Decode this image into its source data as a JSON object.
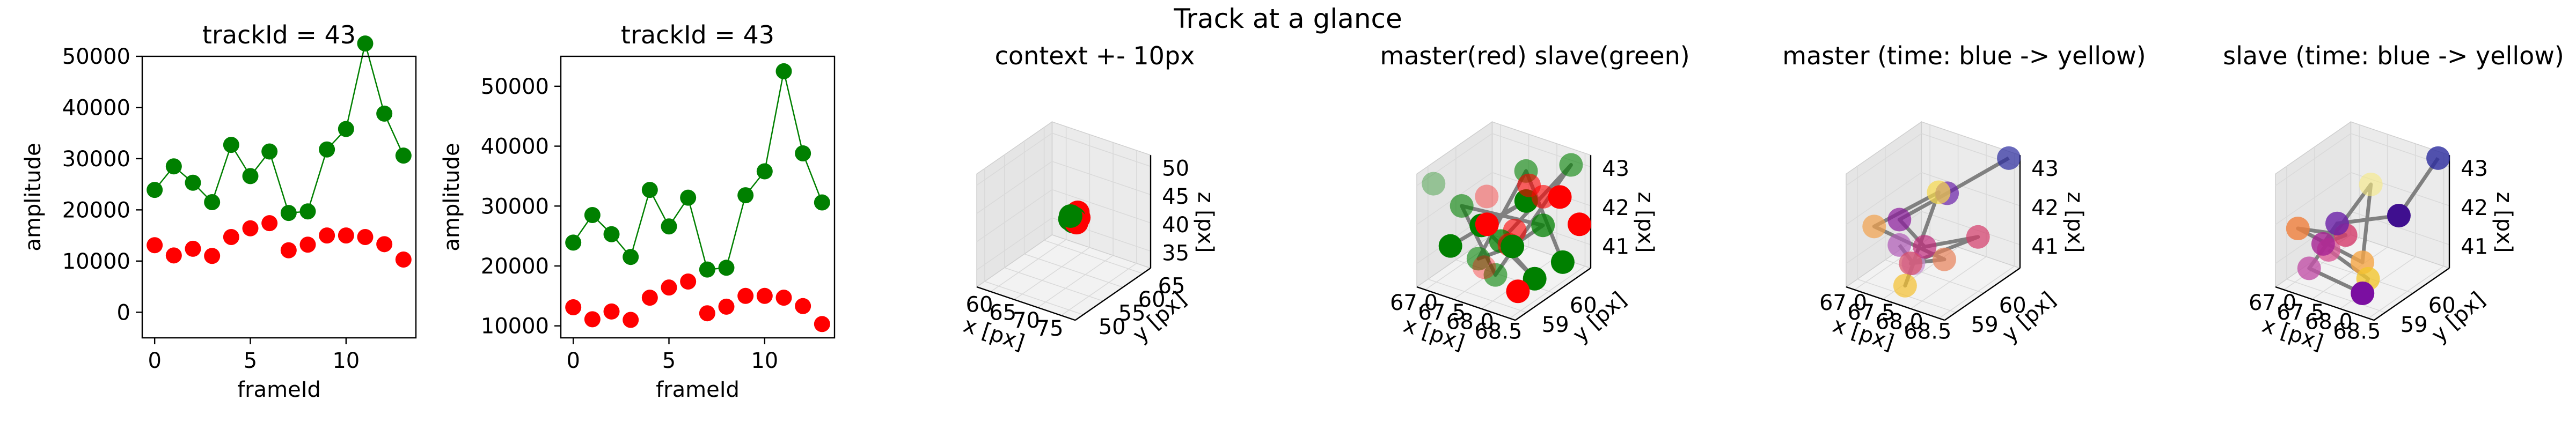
{
  "figure": {
    "title": "Track at a glance"
  },
  "chart_data": [
    {
      "type": "line",
      "title": "trackId = 43",
      "xlabel": "frameId",
      "ylabel": "amplitude",
      "xlim": [
        -0.65,
        13.65
      ],
      "ylim": [
        -5000,
        50000
      ],
      "xticks": [
        "0",
        "5",
        "10"
      ],
      "xtick_values": [
        0,
        5,
        10
      ],
      "yticks": [
        "0",
        "10000",
        "20000",
        "30000",
        "40000",
        "50000"
      ],
      "ytick_values": [
        0,
        10000,
        20000,
        30000,
        40000,
        50000
      ],
      "x": [
        0,
        1,
        2,
        3,
        4,
        5,
        6,
        7,
        8,
        9,
        10,
        11,
        12,
        13
      ],
      "series": [
        {
          "color": "#008000",
          "line": true,
          "values": [
            23900,
            28500,
            25300,
            21500,
            32700,
            26600,
            31400,
            19400,
            19700,
            31800,
            35800,
            52500,
            38800,
            30600
          ]
        },
        {
          "color": "#ff0000",
          "line": false,
          "values": [
            13100,
            11100,
            12400,
            11000,
            14700,
            16400,
            17400,
            12100,
            13200,
            15000,
            15000,
            14700,
            13300,
            10300
          ]
        }
      ]
    },
    {
      "type": "line",
      "title": "trackId = 43",
      "xlabel": "frameId",
      "ylabel": "amplitude",
      "xlim": [
        -0.65,
        13.65
      ],
      "ylim": [
        8000,
        55000
      ],
      "xticks": [
        "0",
        "5",
        "10"
      ],
      "xtick_values": [
        0,
        5,
        10
      ],
      "yticks": [
        "10000",
        "20000",
        "30000",
        "40000",
        "50000"
      ],
      "ytick_values": [
        10000,
        20000,
        30000,
        40000,
        50000
      ],
      "x": [
        0,
        1,
        2,
        3,
        4,
        5,
        6,
        7,
        8,
        9,
        10,
        11,
        12,
        13
      ],
      "series": [
        {
          "color": "#008000",
          "line": true,
          "values": [
            23900,
            28500,
            25300,
            21500,
            32700,
            26600,
            31400,
            19400,
            19700,
            31800,
            35800,
            52500,
            38800,
            30600
          ]
        },
        {
          "color": "#ff0000",
          "line": false,
          "values": [
            13100,
            11100,
            12400,
            11000,
            14700,
            16400,
            17400,
            12100,
            13200,
            15000,
            15000,
            14700,
            13300,
            10300
          ]
        }
      ]
    },
    {
      "type": "scatter",
      "title": "context +- 10px",
      "xlabel": "x [px]",
      "ylabel": "y [px]",
      "zlabel": "z [px]",
      "xlim": [
        57,
        78
      ],
      "ylim": [
        48,
        67
      ],
      "zlim": [
        32,
        52
      ],
      "xticks": [
        "60",
        "65",
        "70",
        "75"
      ],
      "xtick_values": [
        60,
        65,
        70,
        75
      ],
      "yticks": [
        "50",
        "55",
        "60",
        "65"
      ],
      "ytick_values": [
        50,
        55,
        60,
        65
      ],
      "zticks": [
        "35",
        "40",
        "45",
        "50"
      ],
      "ztick_values": [
        35,
        40,
        45,
        50
      ],
      "points": [
        {
          "x": 67.4,
          "y": 59.2,
          "z": 41.5,
          "color": "#008000",
          "alpha": 1
        },
        {
          "x": 67.7,
          "y": 59.0,
          "z": 42.2,
          "color": "#008000",
          "alpha": 1
        },
        {
          "x": 67.9,
          "y": 59.6,
          "z": 41.0,
          "color": "#008000",
          "alpha": 1
        },
        {
          "x": 68.2,
          "y": 59.3,
          "z": 41.8,
          "color": "#008000",
          "alpha": 1
        },
        {
          "x": 67.6,
          "y": 59.8,
          "z": 40.8,
          "color": "#008000",
          "alpha": 1
        },
        {
          "x": 68.5,
          "y": 59.5,
          "z": 42.4,
          "color": "#ff0000",
          "alpha": 1
        },
        {
          "x": 68.8,
          "y": 59.1,
          "z": 41.4,
          "color": "#ff0000",
          "alpha": 1
        },
        {
          "x": 68.6,
          "y": 60.0,
          "z": 41.7,
          "color": "#ff0000",
          "alpha": 1
        },
        {
          "x": 68.9,
          "y": 59.4,
          "z": 43.0,
          "color": "#ff0000",
          "alpha": 1
        },
        {
          "x": 68.4,
          "y": 59.7,
          "z": 40.9,
          "color": "#ff0000",
          "alpha": 1
        }
      ],
      "path": []
    },
    {
      "type": "scatter",
      "title": "master(red) slave(green)",
      "xlabel": "x [px]",
      "ylabel": "y [px]",
      "zlabel": "z [px]",
      "xlim": [
        66.85,
        68.6
      ],
      "ylim": [
        58.6,
        61.3
      ],
      "zlim": [
        40.4,
        43.3
      ],
      "xticks": [
        "67.0",
        "67.5",
        "68.0",
        "68.5"
      ],
      "xtick_values": [
        67.0,
        67.5,
        68.0,
        68.5
      ],
      "yticks": [
        "59",
        "60"
      ],
      "ytick_values": [
        59,
        60
      ],
      "zticks": [
        "41",
        "42",
        "43"
      ],
      "ztick_values": [
        41,
        42,
        43
      ],
      "points": [
        {
          "x": 66.95,
          "y": 59.0,
          "z": 42.9,
          "color": "#008000",
          "alpha": 0.35
        },
        {
          "x": 67.15,
          "y": 59.2,
          "z": 41.3,
          "color": "#008000",
          "alpha": 1
        },
        {
          "x": 67.4,
          "y": 59.1,
          "z": 42.5,
          "color": "#008000",
          "alpha": 0.6
        },
        {
          "x": 67.5,
          "y": 59.6,
          "z": 41.8,
          "color": "#008000",
          "alpha": 1
        },
        {
          "x": 67.6,
          "y": 60.1,
          "z": 41.2,
          "color": "#008000",
          "alpha": 0.75
        },
        {
          "x": 67.85,
          "y": 59.4,
          "z": 40.8,
          "color": "#008000",
          "alpha": 0.6
        },
        {
          "x": 67.95,
          "y": 60.3,
          "z": 42.3,
          "color": "#008000",
          "alpha": 1
        },
        {
          "x": 68.1,
          "y": 60.6,
          "z": 41.6,
          "color": "#008000",
          "alpha": 0.75
        },
        {
          "x": 68.25,
          "y": 60.0,
          "z": 40.6,
          "color": "#008000",
          "alpha": 1
        },
        {
          "x": 68.4,
          "y": 61.0,
          "z": 43.1,
          "color": "#008000",
          "alpha": 0.6
        },
        {
          "x": 67.3,
          "y": 59.9,
          "z": 40.7,
          "color": "#008000",
          "alpha": 0.6
        },
        {
          "x": 68.3,
          "y": 59.1,
          "z": 41.9,
          "color": "#008000",
          "alpha": 1
        },
        {
          "x": 67.7,
          "y": 60.8,
          "z": 42.7,
          "color": "#008000",
          "alpha": 0.6
        },
        {
          "x": 68.5,
          "y": 60.5,
          "z": 40.9,
          "color": "#008000",
          "alpha": 1
        },
        {
          "x": 67.2,
          "y": 60.4,
          "z": 42.0,
          "color": "#ff0000",
          "alpha": 0.35
        },
        {
          "x": 67.45,
          "y": 60.9,
          "z": 41.0,
          "color": "#ff0000",
          "alpha": 0.6
        },
        {
          "x": 67.75,
          "y": 59.3,
          "z": 42.1,
          "color": "#ff0000",
          "alpha": 1
        },
        {
          "x": 67.9,
          "y": 59.8,
          "z": 41.4,
          "color": "#ff0000",
          "alpha": 0.6
        },
        {
          "x": 68.05,
          "y": 60.2,
          "z": 42.8,
          "color": "#ff0000",
          "alpha": 0.6
        },
        {
          "x": 68.2,
          "y": 59.5,
          "z": 40.5,
          "color": "#ff0000",
          "alpha": 1
        },
        {
          "x": 68.35,
          "y": 60.7,
          "z": 42.4,
          "color": "#ff0000",
          "alpha": 1
        },
        {
          "x": 68.55,
          "y": 59.7,
          "z": 43.0,
          "color": "#ff0000",
          "alpha": 0.6
        },
        {
          "x": 67.65,
          "y": 59.4,
          "z": 40.9,
          "color": "#ff0000",
          "alpha": 0.35
        },
        {
          "x": 68.45,
          "y": 61.2,
          "z": 41.5,
          "color": "#ff0000",
          "alpha": 1
        }
      ],
      "path": [
        {
          "x": 67.15,
          "y": 59.2,
          "z": 41.3
        },
        {
          "x": 67.95,
          "y": 60.3,
          "z": 42.3
        },
        {
          "x": 67.5,
          "y": 59.6,
          "z": 41.8
        },
        {
          "x": 68.25,
          "y": 60.0,
          "z": 40.6
        },
        {
          "x": 67.6,
          "y": 60.1,
          "z": 41.2
        },
        {
          "x": 68.4,
          "y": 61.0,
          "z": 43.1
        },
        {
          "x": 67.85,
          "y": 59.4,
          "z": 40.8
        },
        {
          "x": 67.4,
          "y": 59.1,
          "z": 42.5
        },
        {
          "x": 68.1,
          "y": 60.6,
          "z": 41.6
        },
        {
          "x": 68.3,
          "y": 59.1,
          "z": 41.9
        },
        {
          "x": 67.3,
          "y": 59.9,
          "z": 40.7
        },
        {
          "x": 67.7,
          "y": 60.8,
          "z": 42.7
        },
        {
          "x": 68.5,
          "y": 60.5,
          "z": 40.9
        }
      ]
    },
    {
      "type": "scatter",
      "title": "master (time: blue -> yellow)",
      "xlabel": "x [px]",
      "ylabel": "y [px]",
      "zlabel": "z [px]",
      "xlim": [
        66.85,
        68.6
      ],
      "ylim": [
        58.6,
        61.3
      ],
      "zlim": [
        40.4,
        43.3
      ],
      "xticks": [
        "67.0",
        "67.5",
        "68.0",
        "68.5"
      ],
      "xtick_values": [
        67.0,
        67.5,
        68.0,
        68.5
      ],
      "yticks": [
        "59",
        "60"
      ],
      "ytick_values": [
        59,
        60
      ],
      "zticks": [
        "41",
        "42",
        "43"
      ],
      "ztick_values": [
        41,
        42,
        43
      ],
      "points": [
        {
          "x": 68.45,
          "y": 61.2,
          "z": 43.2,
          "color": "#2a2a9e",
          "alpha": 0.7
        },
        {
          "x": 67.85,
          "y": 60.2,
          "z": 42.5,
          "color": "#6a1fa8",
          "alpha": 0.7
        },
        {
          "x": 67.4,
          "y": 59.4,
          "z": 42.0,
          "color": "#8b1a9c",
          "alpha": 0.7
        },
        {
          "x": 67.7,
          "y": 59.7,
          "z": 41.3,
          "color": "#c1297a",
          "alpha": 0.7
        },
        {
          "x": 68.3,
          "y": 60.4,
          "z": 41.5,
          "color": "#d43a6a",
          "alpha": 0.7
        },
        {
          "x": 67.55,
          "y": 59.5,
          "z": 40.9,
          "color": "#d94f66",
          "alpha": 0.7
        },
        {
          "x": 67.95,
          "y": 59.9,
          "z": 41.0,
          "color": "#e8815a",
          "alpha": 0.7
        },
        {
          "x": 67.15,
          "y": 59.0,
          "z": 41.9,
          "color": "#f2a14c",
          "alpha": 0.7
        },
        {
          "x": 67.8,
          "y": 60.0,
          "z": 42.6,
          "color": "#f7d94a",
          "alpha": 0.7
        },
        {
          "x": 67.6,
          "y": 59.2,
          "z": 40.5,
          "color": "#f5c12d",
          "alpha": 0.7
        },
        {
          "x": 67.45,
          "y": 59.8,
          "z": 40.7,
          "color": "#c78fd0",
          "alpha": 0.7
        },
        {
          "x": 67.3,
          "y": 59.6,
          "z": 41.2,
          "color": "#b05ab8",
          "alpha": 0.7
        }
      ],
      "path": [
        {
          "x": 68.45,
          "y": 61.2,
          "z": 43.2
        },
        {
          "x": 67.85,
          "y": 60.2,
          "z": 42.5
        },
        {
          "x": 67.4,
          "y": 59.4,
          "z": 42.0
        },
        {
          "x": 67.7,
          "y": 59.7,
          "z": 41.3
        },
        {
          "x": 68.3,
          "y": 60.4,
          "z": 41.5
        },
        {
          "x": 67.55,
          "y": 59.5,
          "z": 40.9
        },
        {
          "x": 67.95,
          "y": 59.9,
          "z": 41.0
        },
        {
          "x": 67.15,
          "y": 59.0,
          "z": 41.9
        },
        {
          "x": 67.8,
          "y": 60.0,
          "z": 42.6
        },
        {
          "x": 67.6,
          "y": 59.2,
          "z": 40.5
        },
        {
          "x": 67.45,
          "y": 59.8,
          "z": 40.7
        },
        {
          "x": 67.3,
          "y": 59.6,
          "z": 41.2
        }
      ]
    },
    {
      "type": "scatter",
      "title": "slave (time: blue -> yellow)",
      "xlabel": "x [px]",
      "ylabel": "y [px]",
      "zlabel": "z [px]",
      "xlim": [
        66.85,
        68.6
      ],
      "ylim": [
        58.6,
        61.3
      ],
      "zlim": [
        40.4,
        43.3
      ],
      "xticks": [
        "67.0",
        "67.5",
        "68.0",
        "68.5"
      ],
      "xtick_values": [
        67.0,
        67.5,
        68.0,
        68.5
      ],
      "yticks": [
        "59",
        "60"
      ],
      "ytick_values": [
        59,
        60
      ],
      "zticks": [
        "41",
        "42",
        "43"
      ],
      "ztick_values": [
        41,
        42,
        43
      ],
      "points": [
        {
          "x": 68.45,
          "y": 61.2,
          "z": 43.2,
          "color": "#2a2a9e",
          "alpha": 0.8
        },
        {
          "x": 68.1,
          "y": 60.5,
          "z": 41.9,
          "color": "#3f0f8f",
          "alpha": 1
        },
        {
          "x": 67.5,
          "y": 59.5,
          "z": 41.9,
          "color": "#6a1fa8",
          "alpha": 0.8
        },
        {
          "x": 67.35,
          "y": 59.3,
          "z": 41.4,
          "color": "#a62293",
          "alpha": 0.8
        },
        {
          "x": 67.6,
          "y": 59.6,
          "z": 41.6,
          "color": "#d43a6a",
          "alpha": 0.8
        },
        {
          "x": 67.05,
          "y": 59.0,
          "z": 41.8,
          "color": "#f07f3c",
          "alpha": 0.8
        },
        {
          "x": 67.8,
          "y": 59.8,
          "z": 40.9,
          "color": "#f5a545",
          "alpha": 0.8
        },
        {
          "x": 67.9,
          "y": 59.9,
          "z": 42.9,
          "color": "#f7ea80",
          "alpha": 0.6
        },
        {
          "x": 67.2,
          "y": 59.1,
          "z": 40.8,
          "color": "#c251a8",
          "alpha": 0.8
        },
        {
          "x": 68.0,
          "y": 59.4,
          "z": 40.4,
          "color": "#7b0fa1",
          "alpha": 1
        },
        {
          "x": 67.95,
          "y": 59.7,
          "z": 40.6,
          "color": "#f3c52e",
          "alpha": 0.8
        },
        {
          "x": 67.25,
          "y": 59.7,
          "z": 41.0,
          "color": "#d95a96",
          "alpha": 0.8
        }
      ],
      "path": [
        {
          "x": 68.45,
          "y": 61.2,
          "z": 43.2
        },
        {
          "x": 68.1,
          "y": 60.5,
          "z": 41.9
        },
        {
          "x": 67.5,
          "y": 59.5,
          "z": 41.9
        },
        {
          "x": 67.35,
          "y": 59.3,
          "z": 41.4
        },
        {
          "x": 67.6,
          "y": 59.6,
          "z": 41.6
        },
        {
          "x": 67.05,
          "y": 59.0,
          "z": 41.8
        },
        {
          "x": 67.8,
          "y": 59.8,
          "z": 40.9
        },
        {
          "x": 67.9,
          "y": 59.9,
          "z": 42.9
        },
        {
          "x": 67.2,
          "y": 59.1,
          "z": 40.8
        },
        {
          "x": 68.0,
          "y": 59.4,
          "z": 40.4
        },
        {
          "x": 67.95,
          "y": 59.7,
          "z": 40.6
        },
        {
          "x": 67.25,
          "y": 59.7,
          "z": 41.0
        }
      ]
    }
  ]
}
